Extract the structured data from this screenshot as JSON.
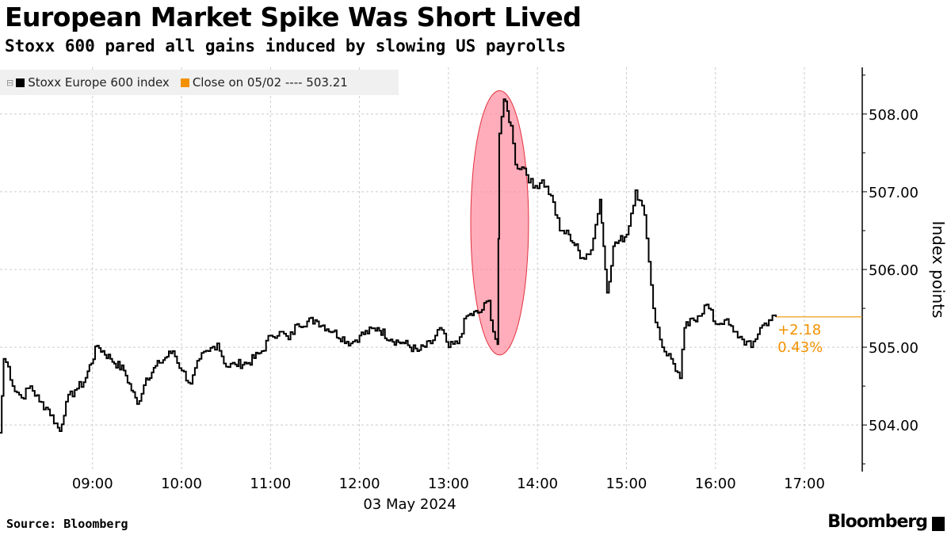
{
  "chart_data": {
    "type": "line",
    "title": "European Market Spike Was Short Lived",
    "subtitle": "Stoxx 600 pared all gains induced by slowing US payrolls",
    "xlabel": "03 May 2024",
    "ylabel": "Index points",
    "xlim": [
      7.96,
      17.65
    ],
    "ylim": [
      503.4,
      508.6
    ],
    "x_ticks": [
      {
        "v": 9,
        "label": "09:00"
      },
      {
        "v": 10,
        "label": "10:00"
      },
      {
        "v": 11,
        "label": "11:00"
      },
      {
        "v": 12,
        "label": "12:00"
      },
      {
        "v": 13,
        "label": "13:00"
      },
      {
        "v": 14,
        "label": "14:00"
      },
      {
        "v": 15,
        "label": "15:00"
      },
      {
        "v": 16,
        "label": "16:00"
      },
      {
        "v": 17,
        "label": "17:00"
      }
    ],
    "y_ticks": [
      {
        "v": 504,
        "label": "504.00"
      },
      {
        "v": 505,
        "label": "505.00"
      },
      {
        "v": 506,
        "label": "506.00"
      },
      {
        "v": 507,
        "label": "507.00"
      },
      {
        "v": 508,
        "label": "508.00"
      }
    ],
    "legend": [
      {
        "label": "Stoxx Europe 600 index",
        "color": "#000000"
      },
      {
        "label": "Close on 05/02 ---- 503.21",
        "color": "#f29100"
      }
    ],
    "grid": true,
    "series": [
      {
        "name": "Stoxx Europe 600 index",
        "color": "#000000",
        "x": [
          7.96,
          8.0,
          8.05,
          8.1,
          8.2,
          8.3,
          8.4,
          8.5,
          8.63,
          8.7,
          8.8,
          8.9,
          9.05,
          9.2,
          9.35,
          9.5,
          9.6,
          9.75,
          9.9,
          10.0,
          10.1,
          10.2,
          10.3,
          10.4,
          10.5,
          10.6,
          10.75,
          10.9,
          11.0,
          11.1,
          11.2,
          11.3,
          11.5,
          11.7,
          11.9,
          12.0,
          12.2,
          12.35,
          12.5,
          12.65,
          12.8,
          12.9,
          13.0,
          13.1,
          13.2,
          13.35,
          13.45,
          13.5,
          13.55,
          13.57,
          13.62,
          13.7,
          13.75,
          13.85,
          13.95,
          14.05,
          14.15,
          14.25,
          14.35,
          14.5,
          14.6,
          14.7,
          14.78,
          14.85,
          15.0,
          15.1,
          15.2,
          15.3,
          15.4,
          15.5,
          15.6,
          15.65,
          15.8,
          15.9,
          16.0,
          16.1,
          16.2,
          16.3,
          16.4,
          16.5,
          16.6,
          16.68
        ],
        "y": [
          503.9,
          504.85,
          504.75,
          504.5,
          504.35,
          504.5,
          504.3,
          504.2,
          503.92,
          504.3,
          504.45,
          504.55,
          505.02,
          504.85,
          504.7,
          504.27,
          504.6,
          504.8,
          504.95,
          504.7,
          504.53,
          504.85,
          504.95,
          505.05,
          504.75,
          504.78,
          504.8,
          504.95,
          505.15,
          505.2,
          505.1,
          505.3,
          505.35,
          505.2,
          505.05,
          505.15,
          505.25,
          505.1,
          505.05,
          504.95,
          505.05,
          505.25,
          505.0,
          505.05,
          505.4,
          505.45,
          505.6,
          505.2,
          505.04,
          507.75,
          508.19,
          507.85,
          507.35,
          507.3,
          507.05,
          507.15,
          506.95,
          506.5,
          506.45,
          506.15,
          506.25,
          506.9,
          505.7,
          506.3,
          506.45,
          507.02,
          506.7,
          505.5,
          505.0,
          504.85,
          504.6,
          505.25,
          505.4,
          505.55,
          505.3,
          505.35,
          505.2,
          505.1,
          505.0,
          505.25,
          505.35,
          505.39
        ]
      }
    ],
    "annotations": {
      "last_level": 505.39,
      "change": "+2.18",
      "change_pct": "0.43%",
      "highlight_x_range": [
        13.25,
        13.9
      ],
      "highlight_y_range": [
        504.9,
        508.3
      ]
    }
  },
  "footer": {
    "source": "Source: Bloomberg",
    "brand": "Bloomberg"
  }
}
